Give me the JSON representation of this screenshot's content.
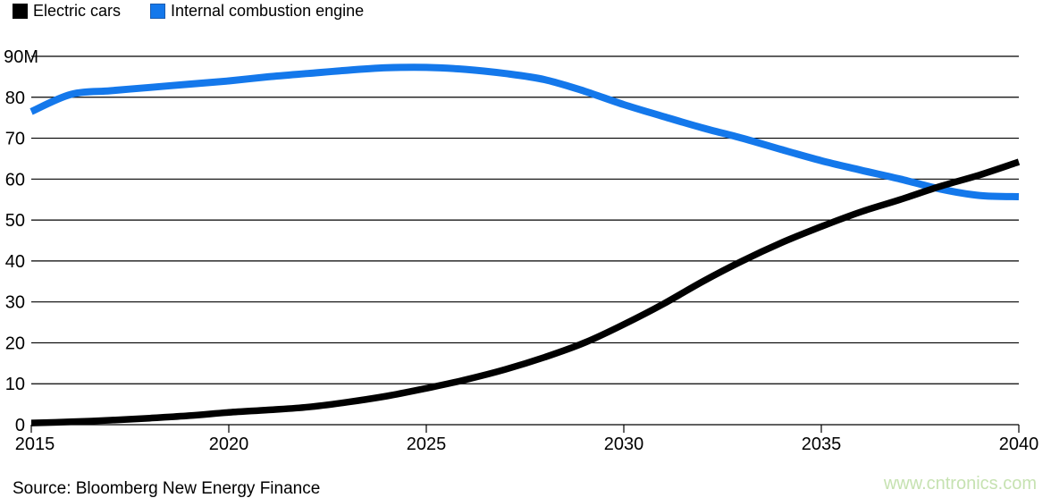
{
  "legend": {
    "items": [
      {
        "label": "Electric cars",
        "color": "#000000",
        "border": "#000000"
      },
      {
        "label": "Internal combustion engine",
        "color": "#1478eb",
        "border": "#1c5cae"
      }
    ]
  },
  "footer": {
    "source": "Source: Bloomberg New Energy Finance",
    "watermark": "www.cntronics.com"
  },
  "colors": {
    "electric_cars": "#000000",
    "internal_combustion": "#1478eb",
    "gridline": "#000000",
    "axis_text": "#000000",
    "watermark_green": "#c6e2b1",
    "background": "#ffffff"
  },
  "chart_data": {
    "type": "line",
    "title": "",
    "xlabel": "",
    "ylabel": "",
    "unit_suffix": "M",
    "grid": true,
    "legend_position": "top-left",
    "xlim": [
      2015,
      2040
    ],
    "ylim": [
      0,
      90
    ],
    "xticks": [
      2015,
      2020,
      2025,
      2030,
      2035,
      2040
    ],
    "xtick_labels": [
      "2015",
      "2020",
      "2025",
      "2030",
      "2035",
      "2040"
    ],
    "yticks": [
      0,
      10,
      20,
      30,
      40,
      50,
      60,
      70,
      80,
      90
    ],
    "ytick_labels": [
      "0",
      "10",
      "20",
      "30",
      "40",
      "50",
      "60",
      "70",
      "80",
      "90M"
    ],
    "x": [
      2015,
      2016,
      2017,
      2018,
      2019,
      2020,
      2021,
      2022,
      2023,
      2024,
      2025,
      2026,
      2027,
      2028,
      2029,
      2030,
      2031,
      2032,
      2033,
      2034,
      2035,
      2036,
      2037,
      2038,
      2039,
      2040
    ],
    "series": [
      {
        "name": "Internal combustion engine",
        "color": "#1478eb",
        "stroke_width": 8,
        "values": [
          76.5,
          80.7,
          81.6,
          82.4,
          83.2,
          84.0,
          85.0,
          85.8,
          86.6,
          87.2,
          87.3,
          86.8,
          85.8,
          84.3,
          81.5,
          78.2,
          75.3,
          72.5,
          70.0,
          67.2,
          64.5,
          62.2,
          60.0,
          57.6,
          56.0,
          55.7
        ]
      },
      {
        "name": "Electric cars",
        "color": "#000000",
        "stroke_width": 7.5,
        "values": [
          0.4,
          0.7,
          1.1,
          1.6,
          2.2,
          3.0,
          3.6,
          4.3,
          5.5,
          7.0,
          8.9,
          11.0,
          13.5,
          16.5,
          20.0,
          24.5,
          29.5,
          35.0,
          40.0,
          44.5,
          48.4,
          52.0,
          55.0,
          58.2,
          61.0,
          64.2
        ]
      }
    ]
  }
}
